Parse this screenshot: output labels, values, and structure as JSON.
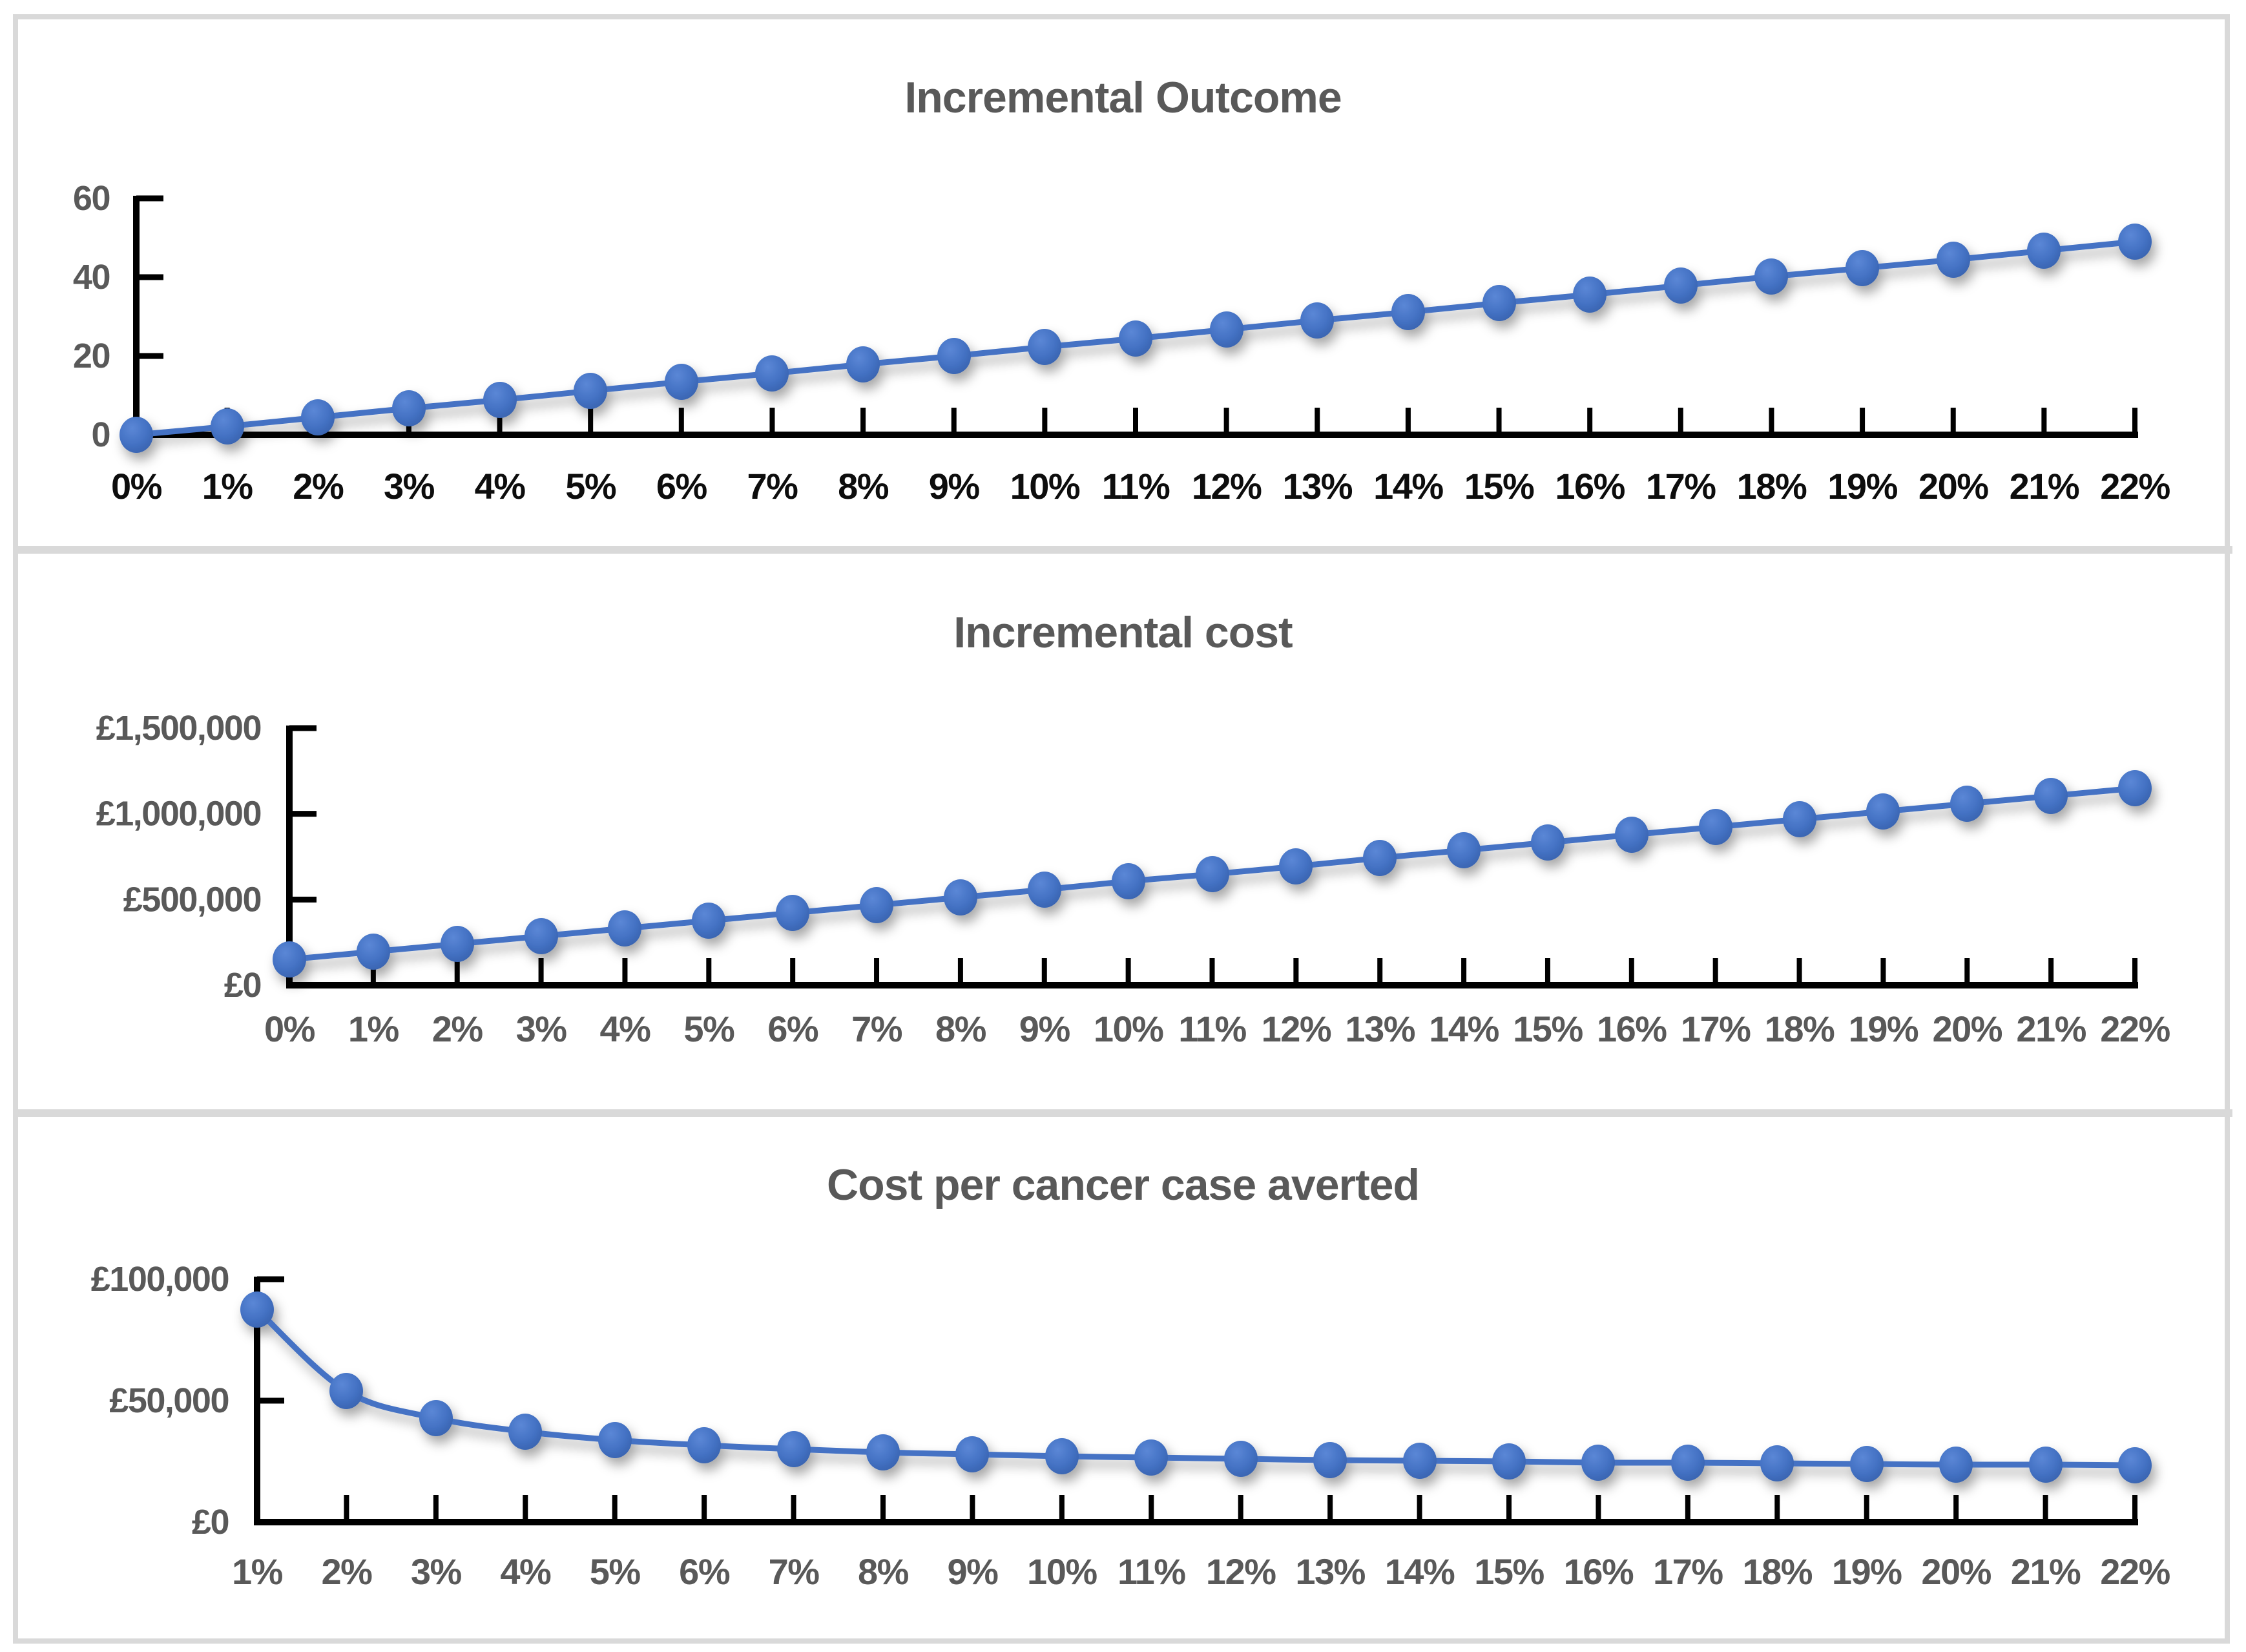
{
  "page": {
    "background": "#FFFFFF",
    "frame_color": "#D9D9D9",
    "divider_color": "#D9D9D9"
  },
  "colors": {
    "series_blue": "#4472C4",
    "marker_center": "#5B87D6",
    "marker_edge": "#3660AB",
    "title_gray": "#595959",
    "label_gray": "#595959",
    "label_black": "#0D0D0D",
    "axis_black": "#000000"
  },
  "chart_data": [
    {
      "type": "line",
      "title": "Incremental Outcome",
      "categories": [
        "0%",
        "1%",
        "2%",
        "3%",
        "4%",
        "5%",
        "6%",
        "7%",
        "8%",
        "9%",
        "10%",
        "11%",
        "12%",
        "13%",
        "14%",
        "15%",
        "16%",
        "17%",
        "18%",
        "19%",
        "20%",
        "21%",
        "22%"
      ],
      "values": [
        0,
        2.2,
        4.5,
        6.7,
        8.9,
        11.1,
        13.4,
        15.6,
        17.8,
        20,
        22.3,
        24.5,
        26.7,
        29,
        31.2,
        33.4,
        35.6,
        37.9,
        40.1,
        42.3,
        44.5,
        46.8,
        49
      ],
      "xlabel": "",
      "ylabel": "",
      "ylim": [
        0,
        60
      ],
      "y_ticks": [
        {
          "value": 0,
          "label": "0"
        },
        {
          "value": 20,
          "label": "20"
        },
        {
          "value": 40,
          "label": "40"
        },
        {
          "value": 60,
          "label": "60"
        }
      ],
      "grid": false,
      "legend": "none",
      "smooth_line": true,
      "marker": "circle",
      "x_label_style": "black"
    },
    {
      "type": "line",
      "title": "Incremental cost",
      "categories": [
        "0%",
        "1%",
        "2%",
        "3%",
        "4%",
        "5%",
        "6%",
        "7%",
        "8%",
        "9%",
        "10%",
        "11%",
        "12%",
        "13%",
        "14%",
        "15%",
        "16%",
        "17%",
        "18%",
        "19%",
        "20%",
        "21%",
        "22%"
      ],
      "values": [
        150000,
        195000,
        241000,
        286000,
        332000,
        377000,
        423000,
        468000,
        514000,
        559000,
        605000,
        650000,
        695000,
        741000,
        786000,
        832000,
        877000,
        923000,
        968000,
        1014000,
        1059000,
        1105000,
        1150000
      ],
      "xlabel": "",
      "ylabel": "",
      "ylim": [
        0,
        1500000
      ],
      "y_ticks": [
        {
          "value": 0,
          "label": "£0"
        },
        {
          "value": 500000,
          "label": "£500,000"
        },
        {
          "value": 1000000,
          "label": "£1,000,000"
        },
        {
          "value": 1500000,
          "label": "£1,500,000"
        }
      ],
      "grid": false,
      "legend": "none",
      "smooth_line": true,
      "marker": "circle",
      "x_label_style": "gray"
    },
    {
      "type": "line",
      "title": "Cost per cancer case averted",
      "categories": [
        "1%",
        "2%",
        "3%",
        "4%",
        "5%",
        "6%",
        "7%",
        "8%",
        "9%",
        "10%",
        "11%",
        "12%",
        "13%",
        "14%",
        "15%",
        "16%",
        "17%",
        "18%",
        "19%",
        "20%",
        "21%",
        "22%"
      ],
      "values": [
        87600,
        54100,
        42800,
        37300,
        33900,
        31700,
        30000,
        28800,
        27900,
        27200,
        26500,
        26000,
        25600,
        25200,
        24900,
        24600,
        24400,
        24100,
        24000,
        23800,
        23600,
        23500
      ],
      "xlabel": "",
      "ylabel": "",
      "ylim": [
        0,
        100000
      ],
      "y_ticks": [
        {
          "value": 0,
          "label": "£0"
        },
        {
          "value": 50000,
          "label": "£50,000"
        },
        {
          "value": 100000,
          "label": "£100,000"
        }
      ],
      "grid": false,
      "legend": "none",
      "smooth_line": true,
      "marker": "circle",
      "x_label_style": "gray"
    }
  ]
}
